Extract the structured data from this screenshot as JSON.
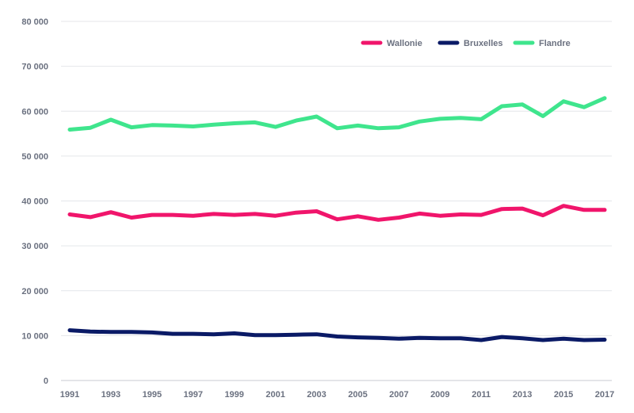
{
  "chart_data": {
    "type": "line",
    "title": "",
    "xlabel": "",
    "ylabel": "",
    "x": [
      1991,
      1992,
      1993,
      1994,
      1995,
      1996,
      1997,
      1998,
      1999,
      2000,
      2001,
      2002,
      2003,
      2004,
      2005,
      2006,
      2007,
      2008,
      2009,
      2010,
      2011,
      2012,
      2013,
      2014,
      2015,
      2016,
      2017
    ],
    "x_tick_labels": [
      "1991",
      "1993",
      "1995",
      "1997",
      "1999",
      "2001",
      "2003",
      "2005",
      "2007",
      "2009",
      "2011",
      "2013",
      "2015",
      "2017"
    ],
    "x_tick_values": [
      1991,
      1993,
      1995,
      1997,
      1999,
      2001,
      2003,
      2005,
      2007,
      2009,
      2011,
      2013,
      2015,
      2017
    ],
    "xlim": [
      1991,
      2017
    ],
    "ylim": [
      0,
      80000
    ],
    "y_ticks": [
      0,
      10000,
      20000,
      30000,
      40000,
      50000,
      60000,
      70000,
      80000
    ],
    "y_tick_labels": [
      "0",
      "10 000",
      "20 000",
      "30 000",
      "40 000",
      "50 000",
      "60 000",
      "70 000",
      "80 000"
    ],
    "grid": true,
    "legend_position": "top-right",
    "series": [
      {
        "name": "Wallonie",
        "color": "#f0156b",
        "values": [
          37000,
          36400,
          37500,
          36300,
          36900,
          36900,
          36700,
          37100,
          36900,
          37100,
          36700,
          37400,
          37700,
          35900,
          36600,
          35800,
          36300,
          37200,
          36700,
          37000,
          36900,
          38200,
          38300,
          36800,
          38900,
          38000,
          38000
        ]
      },
      {
        "name": "Bruxelles",
        "color": "#0a1a66",
        "values": [
          11200,
          10900,
          10800,
          10800,
          10700,
          10400,
          10400,
          10300,
          10500,
          10100,
          10100,
          10200,
          10300,
          9800,
          9600,
          9500,
          9300,
          9500,
          9400,
          9400,
          9000,
          9700,
          9400,
          9000,
          9300,
          9000,
          9100
        ]
      },
      {
        "name": "Flandre",
        "color": "#3fe58d",
        "values": [
          55900,
          56300,
          58100,
          56400,
          56900,
          56800,
          56600,
          57000,
          57300,
          57500,
          56500,
          57900,
          58800,
          56200,
          56800,
          56200,
          56400,
          57700,
          58300,
          58500,
          58200,
          61100,
          61500,
          58900,
          62200,
          60900,
          62900
        ]
      }
    ]
  }
}
